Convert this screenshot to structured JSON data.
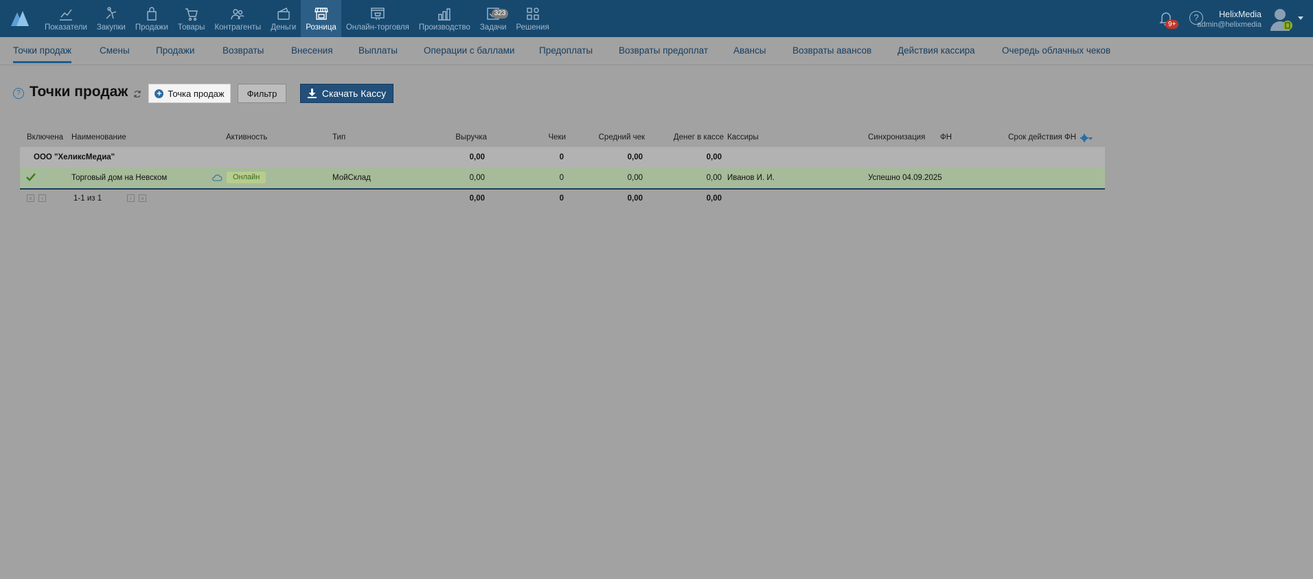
{
  "topnav": {
    "items": [
      {
        "label": "Показатели",
        "icon": "chart-line-icon"
      },
      {
        "label": "Закупки",
        "icon": "hand-icon"
      },
      {
        "label": "Продажи",
        "icon": "bag-icon"
      },
      {
        "label": "Товары",
        "icon": "cart-icon"
      },
      {
        "label": "Контрагенты",
        "icon": "people-icon"
      },
      {
        "label": "Деньги",
        "icon": "wallet-icon"
      },
      {
        "label": "Розница",
        "icon": "store-icon",
        "active": true
      },
      {
        "label": "Онлайн-торговля",
        "icon": "web-store-icon"
      },
      {
        "label": "Производство",
        "icon": "factory-icon"
      },
      {
        "label": "Задачи",
        "icon": "tasks-icon",
        "badge": "323"
      },
      {
        "label": "Решения",
        "icon": "apps-icon"
      }
    ],
    "notifications_badge": "9+",
    "help_label": "?"
  },
  "user": {
    "name": "HelixMedia",
    "email": "admin@helixmedia"
  },
  "subtabs": [
    {
      "label": "Точки продаж",
      "active": true
    },
    {
      "label": "Смены"
    },
    {
      "label": "Продажи"
    },
    {
      "label": "Возвраты"
    },
    {
      "label": "Внесения"
    },
    {
      "label": "Выплаты"
    },
    {
      "label": "Операции с баллами"
    },
    {
      "label": "Предоплаты"
    },
    {
      "label": "Возвраты предоплат"
    },
    {
      "label": "Авансы"
    },
    {
      "label": "Возвраты авансов"
    },
    {
      "label": "Действия кассира"
    },
    {
      "label": "Очередь облачных чеков"
    }
  ],
  "header": {
    "help": "?",
    "title": "Точки продаж",
    "new_button": "Точка продаж",
    "filter_button": "Фильтр",
    "download_button": "Скачать Кассу"
  },
  "table": {
    "columns": [
      "Включена",
      "Наименование",
      "Активность",
      "Тип",
      "Выручка",
      "Чеки",
      "Средний чек",
      "Денег в кассе",
      "Кассиры",
      "Синхронизация",
      "ФН",
      "Срок действия ФН"
    ],
    "group": {
      "name": "ООО \"ХеликсМедиа\"",
      "revenue": "0,00",
      "checks": "0",
      "avg_check": "0,00",
      "cash": "0,00"
    },
    "rows": [
      {
        "enabled": true,
        "name": "Торговый дом на Невском",
        "activity": "Онлайн",
        "type": "МойСклад",
        "revenue": "0,00",
        "checks": "0",
        "avg_check": "0,00",
        "cash": "0,00",
        "cashiers": "Иванов И. И.",
        "sync": "Успешно 04.09.2025"
      }
    ],
    "footer": {
      "pagination": "1-1 из 1",
      "revenue": "0,00",
      "checks": "0",
      "avg_check": "0,00",
      "cash": "0,00"
    }
  }
}
